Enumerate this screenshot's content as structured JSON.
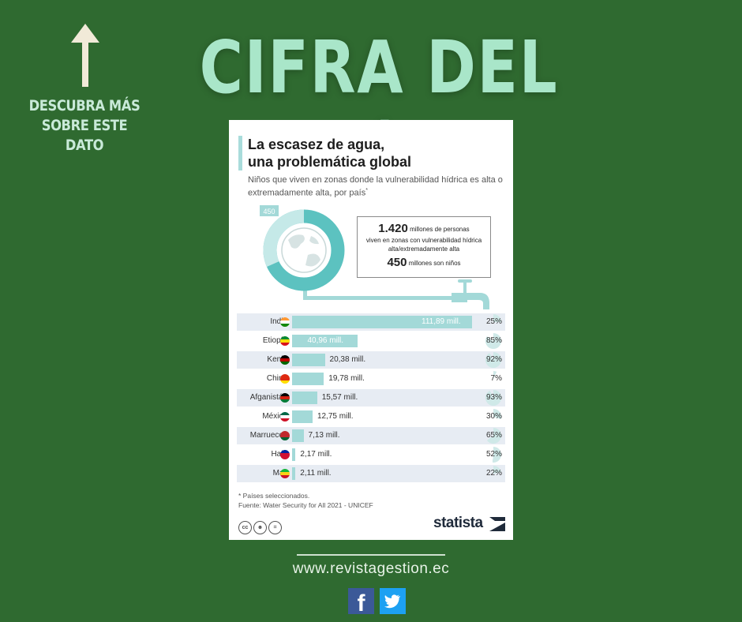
{
  "page": {
    "headline": "CIFRA DEL DÍA",
    "discover_text": "DESCUBRA MÁS SOBRE ESTE DATO",
    "website": "www.revistagestion.ec",
    "social": [
      "facebook-icon",
      "twitter-icon"
    ]
  },
  "infographic": {
    "title": "La escasez de agua,\nuna problemática global",
    "subtitle": "Niños que viven en zonas donde la vulnerabilidad hídrica es alta o extremadamente alta, por país",
    "subtitle_mark": "*",
    "donut": {
      "label": "450",
      "total": 1420,
      "part": 450
    },
    "info_box": {
      "total_value": "1.420",
      "total_text_1": "millones de personas",
      "total_text_2": "viven en zonas con vulnerabilidad hídrica alta/extremadamente alta",
      "children_value": "450",
      "children_text": "millones son niños"
    },
    "note": "* Países seleccionados.",
    "source": "Fuente: Water Security for All 2021 - UNICEF",
    "brand": "statista",
    "license_icons": [
      "cc-icon",
      "attribution-icon",
      "no-derivatives-icon"
    ]
  },
  "colors": {
    "background": "#2f6a30",
    "headline": "#a9e6c9",
    "bar": "#a3d9d8",
    "donut_main": "#5cc2c0",
    "donut_light": "#c5e9e8",
    "row_shade": "#e7ecf3"
  },
  "chart_data": {
    "type": "bar",
    "orientation": "horizontal",
    "unit": "mill.",
    "categories": [
      "India",
      "Etiopía",
      "Kenia",
      "China",
      "Afganistán",
      "México",
      "Marruecos",
      "Haití",
      "Mali"
    ],
    "values": [
      111.89,
      40.96,
      20.38,
      19.78,
      15.57,
      12.75,
      7.13,
      2.17,
      2.11
    ],
    "value_labels": [
      "111,89 mill.",
      "40,96 mill.",
      "20,38 mill.",
      "19,78 mill.",
      "15,57 mill.",
      "12,75 mill.",
      "7,13 mill.",
      "2,17 mill.",
      "2,11 mill."
    ],
    "percentages": [
      25,
      85,
      92,
      7,
      93,
      30,
      65,
      52,
      22
    ],
    "percentage_labels": [
      "25%",
      "85%",
      "92%",
      "7%",
      "93%",
      "30%",
      "65%",
      "52%",
      "22%"
    ],
    "flags": [
      "india-flag-icon",
      "ethiopia-flag-icon",
      "kenya-flag-icon",
      "china-flag-icon",
      "afghanistan-flag-icon",
      "mexico-flag-icon",
      "morocco-flag-icon",
      "haiti-flag-icon",
      "mali-flag-icon"
    ],
    "flag_colors": [
      [
        "#ff9933",
        "#ffffff",
        "#138808"
      ],
      [
        "#078930",
        "#fcdd09",
        "#da121a"
      ],
      [
        "#000000",
        "#bb0000",
        "#006600"
      ],
      [
        "#de2910",
        "#de2910",
        "#ffde00"
      ],
      [
        "#000000",
        "#d32011",
        "#007a36"
      ],
      [
        "#006847",
        "#ffffff",
        "#ce1126"
      ],
      [
        "#c1272d",
        "#c1272d",
        "#006233"
      ],
      [
        "#00209f",
        "#d21034",
        "#d21034"
      ],
      [
        "#14b53a",
        "#fcd116",
        "#ce1126"
      ]
    ]
  }
}
